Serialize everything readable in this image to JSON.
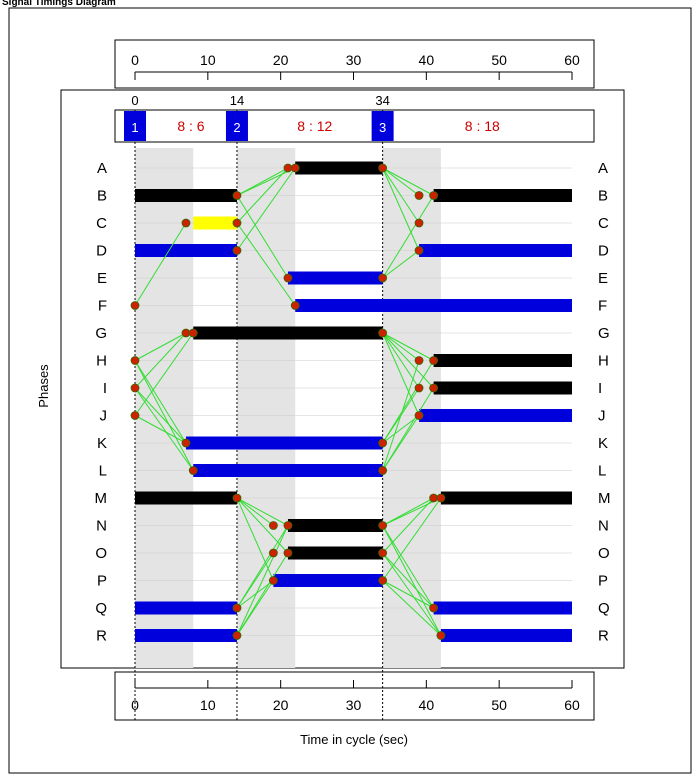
{
  "title": "Signal Timings Diagram",
  "axis": {
    "xlabel": "Time in cycle (sec)",
    "ylabel": "Phases",
    "min": 0,
    "max": 60,
    "ticks": [
      0,
      10,
      20,
      30,
      40,
      50,
      60
    ]
  },
  "stages": [
    {
      "num": "1",
      "start": 0,
      "intergreen_end": 8,
      "label": "8 : 6"
    },
    {
      "num": "2",
      "start": 14,
      "intergreen_end": 22,
      "label": "8 : 12"
    },
    {
      "num": "3",
      "start": 34,
      "intergreen_end": 42,
      "label": "8 : 18"
    }
  ],
  "stage_time_labels": [
    "0",
    "14",
    "34"
  ],
  "phases": [
    "A",
    "B",
    "C",
    "D",
    "E",
    "F",
    "G",
    "H",
    "I",
    "J",
    "K",
    "L",
    "M",
    "N",
    "O",
    "P",
    "Q",
    "R"
  ],
  "bars": [
    {
      "phase": "A",
      "start": 22,
      "end": 34,
      "color": "black"
    },
    {
      "phase": "B",
      "start": 0,
      "end": 14,
      "color": "black"
    },
    {
      "phase": "B",
      "start": 41,
      "end": 60,
      "color": "black"
    },
    {
      "phase": "C",
      "start": 8,
      "end": 14,
      "color": "yellow"
    },
    {
      "phase": "D",
      "start": 0,
      "end": 14,
      "color": "blue"
    },
    {
      "phase": "D",
      "start": 39,
      "end": 60,
      "color": "blue"
    },
    {
      "phase": "E",
      "start": 21,
      "end": 34,
      "color": "blue"
    },
    {
      "phase": "F",
      "start": 22,
      "end": 60,
      "color": "blue"
    },
    {
      "phase": "G",
      "start": 8,
      "end": 34,
      "color": "black"
    },
    {
      "phase": "H",
      "start": 41,
      "end": 60,
      "color": "black"
    },
    {
      "phase": "I",
      "start": 41,
      "end": 60,
      "color": "black"
    },
    {
      "phase": "J",
      "start": 39,
      "end": 60,
      "color": "blue"
    },
    {
      "phase": "K",
      "start": 7,
      "end": 34,
      "color": "blue"
    },
    {
      "phase": "L",
      "start": 8,
      "end": 34,
      "color": "blue"
    },
    {
      "phase": "M",
      "start": 0,
      "end": 14,
      "color": "black"
    },
    {
      "phase": "M",
      "start": 42,
      "end": 60,
      "color": "black"
    },
    {
      "phase": "N",
      "start": 21,
      "end": 34,
      "color": "black"
    },
    {
      "phase": "O",
      "start": 21,
      "end": 34,
      "color": "black"
    },
    {
      "phase": "P",
      "start": 19,
      "end": 34,
      "color": "blue"
    },
    {
      "phase": "Q",
      "start": 0,
      "end": 14,
      "color": "blue"
    },
    {
      "phase": "Q",
      "start": 41,
      "end": 60,
      "color": "blue"
    },
    {
      "phase": "R",
      "start": 0,
      "end": 14,
      "color": "blue"
    },
    {
      "phase": "R",
      "start": 42,
      "end": 60,
      "color": "blue"
    }
  ],
  "points": [
    {
      "phase": "A",
      "t": 21
    },
    {
      "phase": "A",
      "t": 22
    },
    {
      "phase": "A",
      "t": 34
    },
    {
      "phase": "B",
      "t": 14
    },
    {
      "phase": "B",
      "t": 39
    },
    {
      "phase": "B",
      "t": 41
    },
    {
      "phase": "C",
      "t": 7
    },
    {
      "phase": "C",
      "t": 14
    },
    {
      "phase": "C",
      "t": 39
    },
    {
      "phase": "D",
      "t": 14
    },
    {
      "phase": "D",
      "t": 39
    },
    {
      "phase": "E",
      "t": 21
    },
    {
      "phase": "E",
      "t": 34
    },
    {
      "phase": "F",
      "t": 0
    },
    {
      "phase": "F",
      "t": 22
    },
    {
      "phase": "G",
      "t": 7
    },
    {
      "phase": "G",
      "t": 8
    },
    {
      "phase": "G",
      "t": 34
    },
    {
      "phase": "H",
      "t": 0
    },
    {
      "phase": "H",
      "t": 39
    },
    {
      "phase": "H",
      "t": 41
    },
    {
      "phase": "I",
      "t": 0
    },
    {
      "phase": "I",
      "t": 39
    },
    {
      "phase": "I",
      "t": 41
    },
    {
      "phase": "J",
      "t": 0
    },
    {
      "phase": "J",
      "t": 39
    },
    {
      "phase": "K",
      "t": 7
    },
    {
      "phase": "K",
      "t": 34
    },
    {
      "phase": "L",
      "t": 8
    },
    {
      "phase": "L",
      "t": 34
    },
    {
      "phase": "M",
      "t": 14
    },
    {
      "phase": "M",
      "t": 41
    },
    {
      "phase": "M",
      "t": 42
    },
    {
      "phase": "N",
      "t": 19
    },
    {
      "phase": "N",
      "t": 21
    },
    {
      "phase": "N",
      "t": 34
    },
    {
      "phase": "O",
      "t": 19
    },
    {
      "phase": "O",
      "t": 21
    },
    {
      "phase": "O",
      "t": 34
    },
    {
      "phase": "P",
      "t": 19
    },
    {
      "phase": "P",
      "t": 34
    },
    {
      "phase": "Q",
      "t": 14
    },
    {
      "phase": "Q",
      "t": 41
    },
    {
      "phase": "R",
      "t": 14
    },
    {
      "phase": "R",
      "t": 42
    }
  ],
  "links": [
    {
      "from": [
        "B",
        14
      ],
      "to": [
        "A",
        21
      ]
    },
    {
      "from": [
        "C",
        14
      ],
      "to": [
        "A",
        21
      ]
    },
    {
      "from": [
        "D",
        14
      ],
      "to": [
        "A",
        22
      ]
    },
    {
      "from": [
        "B",
        14
      ],
      "to": [
        "A",
        22
      ]
    },
    {
      "from": [
        "B",
        14
      ],
      "to": [
        "E",
        21
      ]
    },
    {
      "from": [
        "C",
        14
      ],
      "to": [
        "F",
        22
      ]
    },
    {
      "from": [
        "A",
        34
      ],
      "to": [
        "B",
        39
      ]
    },
    {
      "from": [
        "A",
        34
      ],
      "to": [
        "B",
        41
      ]
    },
    {
      "from": [
        "A",
        34
      ],
      "to": [
        "C",
        39
      ]
    },
    {
      "from": [
        "A",
        34
      ],
      "to": [
        "D",
        39
      ]
    },
    {
      "from": [
        "E",
        34
      ],
      "to": [
        "B",
        41
      ]
    },
    {
      "from": [
        "E",
        34
      ],
      "to": [
        "D",
        39
      ]
    },
    {
      "from": [
        "F",
        0
      ],
      "to": [
        "C",
        7
      ]
    },
    {
      "from": [
        "H",
        0
      ],
      "to": [
        "G",
        7
      ]
    },
    {
      "from": [
        "I",
        0
      ],
      "to": [
        "G",
        7
      ]
    },
    {
      "from": [
        "J",
        0
      ],
      "to": [
        "G",
        8
      ]
    },
    {
      "from": [
        "H",
        0
      ],
      "to": [
        "K",
        7
      ]
    },
    {
      "from": [
        "H",
        0
      ],
      "to": [
        "L",
        8
      ]
    },
    {
      "from": [
        "I",
        0
      ],
      "to": [
        "K",
        7
      ]
    },
    {
      "from": [
        "I",
        0
      ],
      "to": [
        "L",
        8
      ]
    },
    {
      "from": [
        "J",
        0
      ],
      "to": [
        "K",
        7
      ]
    },
    {
      "from": [
        "G",
        34
      ],
      "to": [
        "H",
        39
      ]
    },
    {
      "from": [
        "G",
        34
      ],
      "to": [
        "H",
        41
      ]
    },
    {
      "from": [
        "G",
        34
      ],
      "to": [
        "I",
        39
      ]
    },
    {
      "from": [
        "G",
        34
      ],
      "to": [
        "I",
        41
      ]
    },
    {
      "from": [
        "G",
        34
      ],
      "to": [
        "J",
        39
      ]
    },
    {
      "from": [
        "K",
        34
      ],
      "to": [
        "H",
        41
      ]
    },
    {
      "from": [
        "K",
        34
      ],
      "to": [
        "I",
        39
      ]
    },
    {
      "from": [
        "K",
        34
      ],
      "to": [
        "J",
        39
      ]
    },
    {
      "from": [
        "L",
        34
      ],
      "to": [
        "H",
        39
      ]
    },
    {
      "from": [
        "L",
        34
      ],
      "to": [
        "I",
        41
      ]
    },
    {
      "from": [
        "L",
        34
      ],
      "to": [
        "J",
        39
      ]
    },
    {
      "from": [
        "M",
        14
      ],
      "to": [
        "N",
        19
      ]
    },
    {
      "from": [
        "M",
        14
      ],
      "to": [
        "N",
        21
      ]
    },
    {
      "from": [
        "M",
        14
      ],
      "to": [
        "O",
        21
      ]
    },
    {
      "from": [
        "M",
        14
      ],
      "to": [
        "P",
        19
      ]
    },
    {
      "from": [
        "Q",
        14
      ],
      "to": [
        "N",
        21
      ]
    },
    {
      "from": [
        "Q",
        14
      ],
      "to": [
        "O",
        19
      ]
    },
    {
      "from": [
        "Q",
        14
      ],
      "to": [
        "P",
        19
      ]
    },
    {
      "from": [
        "R",
        14
      ],
      "to": [
        "N",
        21
      ]
    },
    {
      "from": [
        "R",
        14
      ],
      "to": [
        "O",
        21
      ]
    },
    {
      "from": [
        "R",
        14
      ],
      "to": [
        "P",
        19
      ]
    },
    {
      "from": [
        "N",
        34
      ],
      "to": [
        "M",
        41
      ]
    },
    {
      "from": [
        "N",
        34
      ],
      "to": [
        "M",
        42
      ]
    },
    {
      "from": [
        "O",
        34
      ],
      "to": [
        "M",
        41
      ]
    },
    {
      "from": [
        "O",
        34
      ],
      "to": [
        "Q",
        41
      ]
    },
    {
      "from": [
        "O",
        34
      ],
      "to": [
        "R",
        42
      ]
    },
    {
      "from": [
        "P",
        34
      ],
      "to": [
        "M",
        42
      ]
    },
    {
      "from": [
        "P",
        34
      ],
      "to": [
        "Q",
        41
      ]
    },
    {
      "from": [
        "P",
        34
      ],
      "to": [
        "R",
        42
      ]
    },
    {
      "from": [
        "N",
        34
      ],
      "to": [
        "Q",
        41
      ]
    },
    {
      "from": [
        "N",
        34
      ],
      "to": [
        "R",
        42
      ]
    }
  ],
  "colors": {
    "black": "#000000",
    "yellow": "#ffff00",
    "blue": "#0000dd",
    "stage_box": "#0000dd",
    "stage_label": "#cc0000",
    "intergreen": "#e4e4e4",
    "link": "#33dd33",
    "point": "#cc2200",
    "point_edge": "#336600",
    "grid": "#cccccc"
  }
}
